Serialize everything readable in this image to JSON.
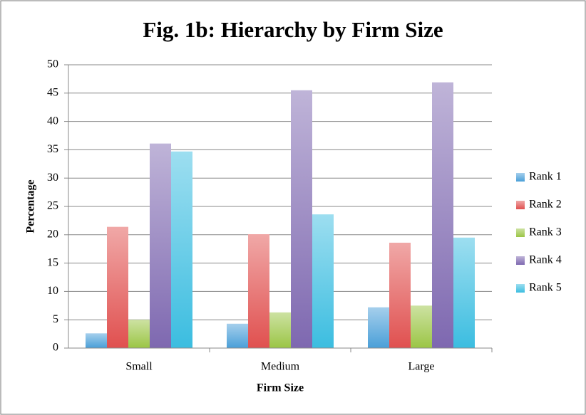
{
  "chart_data": {
    "type": "bar",
    "title": "Fig. 1b: Hierarchy by Firm Size",
    "x_label": "Firm Size",
    "y_label": "Percentage",
    "categories": [
      "Small",
      "Medium",
      "Large"
    ],
    "series": [
      {
        "name": "Rank 1",
        "color": "#4a9fd8",
        "values": [
          2.6,
          4.3,
          7.2
        ]
      },
      {
        "name": "Rank 2",
        "color": "#e0504f",
        "values": [
          21.4,
          20.1,
          18.6
        ]
      },
      {
        "name": "Rank 3",
        "color": "#9bc545",
        "values": [
          5.0,
          6.3,
          7.5
        ]
      },
      {
        "name": "Rank 4",
        "color": "#7e68b0",
        "values": [
          36.1,
          45.5,
          46.9
        ]
      },
      {
        "name": "Rank 5",
        "color": "#3bbde0",
        "values": [
          34.7,
          23.6,
          19.5
        ]
      }
    ],
    "ylim": [
      0,
      50
    ],
    "yticks": [
      0,
      5,
      10,
      15,
      20,
      25,
      30,
      35,
      40,
      45,
      50
    ],
    "grid": true,
    "legend": "right"
  }
}
